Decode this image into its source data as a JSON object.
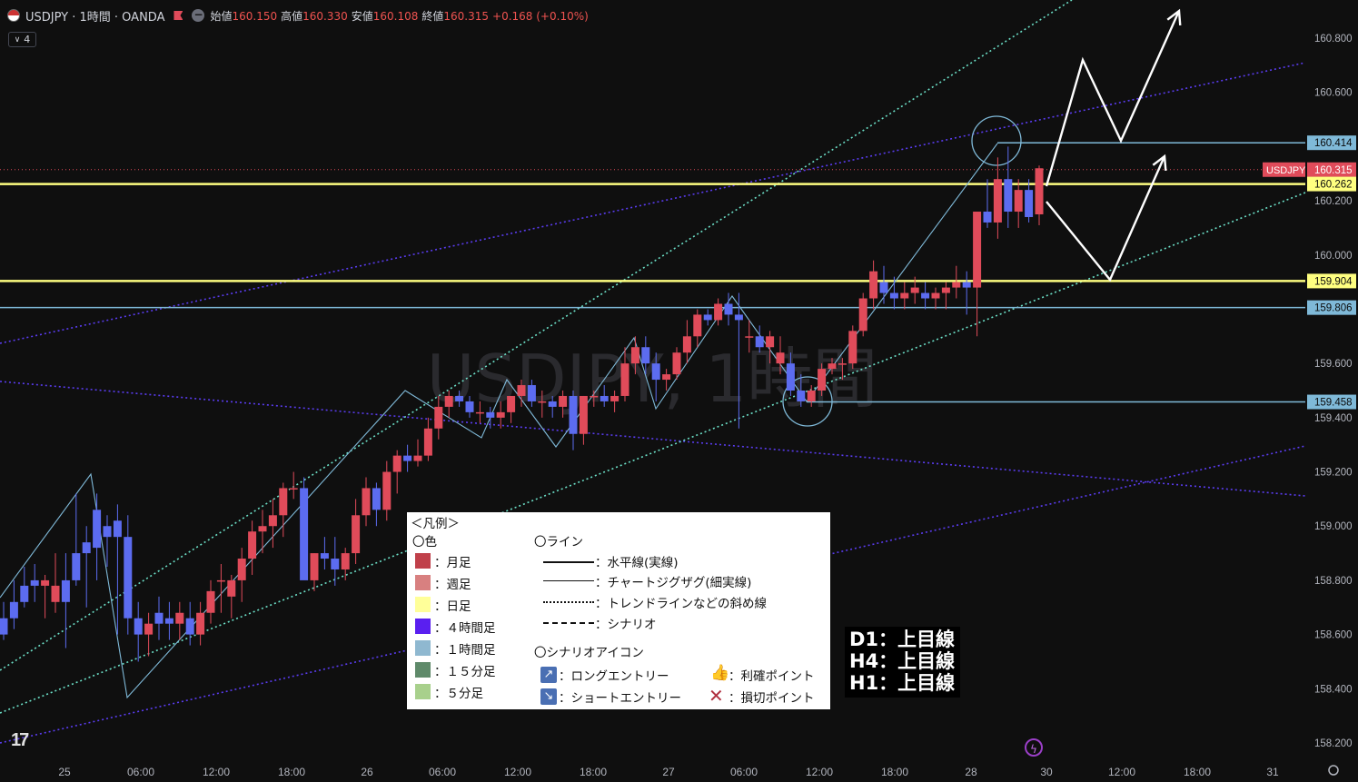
{
  "header": {
    "symbol_title": "USDJPY · 1時間 · OANDA",
    "ohlc": [
      {
        "k": "始値",
        "v": "160.150"
      },
      {
        "k": "高値",
        "v": "160.330"
      },
      {
        "k": "安値",
        "v": "160.108"
      },
      {
        "k": "終値",
        "v": "160.315"
      },
      {
        "k": "",
        "v": "+0.168 (+0.10%)"
      }
    ],
    "indicator_count": "4"
  },
  "colors": {
    "background": "#0f0f0f",
    "up": "#e04b5a",
    "down": "#5c6cf0",
    "daily_line": "#ffff80",
    "hourly_line": "#7fb9d8",
    "h4_line": "#5a3cf0",
    "trend_dotted": "#6ce0c8",
    "scenario": "#ffffff"
  },
  "watermark": "USDJPY, 1時間",
  "price_axis": {
    "ticks": [
      "160.800",
      "160.600",
      "160.200",
      "160.000",
      "159.600",
      "159.400",
      "159.200",
      "159.000",
      "158.800",
      "158.600",
      "158.400",
      "158.200"
    ],
    "labels": [
      {
        "text": "160.414",
        "value": 160.414,
        "color": "#7fb9d8",
        "text_color": "#0b0b0b"
      },
      {
        "text": "160.315",
        "value": 160.315,
        "color": "#e04b5a",
        "text_color": "#ffffff",
        "symbol": "USDJPY"
      },
      {
        "text": "160.262",
        "value": 160.262,
        "color": "#ffff80",
        "text_color": "#0b0b0b"
      },
      {
        "text": "159.904",
        "value": 159.904,
        "color": "#ffff80",
        "text_color": "#0b0b0b"
      },
      {
        "text": "159.806",
        "value": 159.806,
        "color": "#7fb9d8",
        "text_color": "#0b0b0b"
      },
      {
        "text": "159.458",
        "value": 159.458,
        "color": "#7fb9d8",
        "text_color": "#0b0b0b"
      }
    ]
  },
  "time_axis": {
    "ticks": [
      "25",
      "06:00",
      "12:00",
      "18:00",
      "26",
      "06:00",
      "12:00",
      "18:00",
      "27",
      "06:00",
      "12:00",
      "18:00",
      "28",
      "30",
      "12:00",
      "18:00",
      "31"
    ]
  },
  "chart_data": {
    "type": "candlestick",
    "symbol": "USDJPY",
    "timeframe": "1時間",
    "ylim": [
      158.2,
      160.9
    ],
    "x_labels": [
      "25",
      "06:00",
      "12:00",
      "18:00",
      "26",
      "06:00",
      "12:00",
      "18:00",
      "27",
      "06:00",
      "12:00",
      "18:00",
      "28",
      "30",
      "12:00",
      "18:00",
      "31"
    ],
    "candles": [
      [
        158.66,
        158.72,
        158.58,
        158.6
      ],
      [
        158.72,
        158.8,
        158.62,
        158.66
      ],
      [
        158.78,
        158.85,
        158.7,
        158.72
      ],
      [
        158.8,
        158.86,
        158.72,
        158.78
      ],
      [
        158.78,
        158.82,
        158.66,
        158.8
      ],
      [
        158.72,
        158.9,
        158.68,
        158.78
      ],
      [
        158.8,
        158.9,
        158.55,
        158.72
      ],
      [
        158.9,
        159.12,
        158.78,
        158.8
      ],
      [
        158.94,
        159.0,
        158.7,
        158.9
      ],
      [
        159.06,
        159.12,
        158.8,
        158.92
      ],
      [
        159.0,
        159.04,
        158.85,
        158.96
      ],
      [
        159.02,
        159.08,
        158.6,
        158.96
      ],
      [
        158.96,
        159.04,
        158.6,
        158.66
      ],
      [
        158.66,
        158.72,
        158.5,
        158.6
      ],
      [
        158.6,
        158.68,
        158.52,
        158.64
      ],
      [
        158.68,
        158.74,
        158.58,
        158.64
      ],
      [
        158.66,
        158.72,
        158.58,
        158.64
      ],
      [
        158.64,
        158.72,
        158.58,
        158.68
      ],
      [
        158.66,
        158.72,
        158.56,
        158.6
      ],
      [
        158.6,
        158.72,
        158.56,
        158.68
      ],
      [
        158.68,
        158.8,
        158.64,
        158.76
      ],
      [
        158.8,
        158.86,
        158.68,
        158.8
      ],
      [
        158.74,
        158.82,
        158.66,
        158.8
      ],
      [
        158.8,
        158.92,
        158.72,
        158.88
      ],
      [
        158.88,
        159.02,
        158.82,
        158.98
      ],
      [
        158.98,
        159.06,
        158.9,
        159.0
      ],
      [
        159.0,
        159.1,
        158.92,
        159.04
      ],
      [
        159.04,
        159.16,
        158.96,
        159.14
      ],
      [
        159.14,
        159.2,
        159.1,
        159.14
      ],
      [
        159.14,
        159.18,
        158.82,
        158.8
      ],
      [
        158.8,
        158.9,
        158.76,
        158.9
      ],
      [
        158.9,
        158.96,
        158.84,
        158.88
      ],
      [
        158.88,
        158.96,
        158.78,
        158.84
      ],
      [
        158.84,
        158.92,
        158.8,
        158.9
      ],
      [
        158.9,
        159.1,
        158.86,
        159.04
      ],
      [
        159.04,
        159.18,
        159.0,
        159.14
      ],
      [
        159.14,
        159.16,
        159.0,
        159.06
      ],
      [
        159.06,
        159.24,
        159.02,
        159.2
      ],
      [
        159.2,
        159.28,
        159.12,
        159.26
      ],
      [
        159.26,
        159.3,
        159.2,
        159.24
      ],
      [
        159.24,
        159.32,
        159.22,
        159.26
      ],
      [
        159.26,
        159.4,
        159.24,
        159.36
      ],
      [
        159.36,
        159.48,
        159.32,
        159.44
      ],
      [
        159.44,
        159.5,
        159.4,
        159.48
      ],
      [
        159.48,
        159.5,
        159.44,
        159.46
      ],
      [
        159.46,
        159.48,
        159.4,
        159.42
      ],
      [
        159.42,
        159.46,
        159.38,
        159.42
      ],
      [
        159.42,
        159.44,
        159.36,
        159.4
      ],
      [
        159.4,
        159.46,
        159.36,
        159.42
      ],
      [
        159.42,
        159.48,
        159.38,
        159.48
      ],
      [
        159.48,
        159.54,
        159.44,
        159.52
      ],
      [
        159.52,
        159.54,
        159.44,
        159.46
      ],
      [
        159.46,
        159.5,
        159.4,
        159.46
      ],
      [
        159.46,
        159.48,
        159.4,
        159.44
      ],
      [
        159.44,
        159.5,
        159.4,
        159.48
      ],
      [
        159.48,
        159.5,
        159.28,
        159.34
      ],
      [
        159.34,
        159.48,
        159.3,
        159.48
      ],
      [
        159.48,
        159.5,
        159.44,
        159.48
      ],
      [
        159.48,
        159.52,
        159.44,
        159.46
      ],
      [
        159.46,
        159.5,
        159.42,
        159.48
      ],
      [
        159.48,
        159.66,
        159.46,
        159.6
      ],
      [
        159.6,
        159.7,
        159.56,
        159.66
      ],
      [
        159.66,
        159.7,
        159.56,
        159.6
      ],
      [
        159.6,
        159.64,
        159.46,
        159.54
      ],
      [
        159.54,
        159.58,
        159.5,
        159.56
      ],
      [
        159.56,
        159.66,
        159.54,
        159.64
      ],
      [
        159.64,
        159.76,
        159.6,
        159.7
      ],
      [
        159.7,
        159.8,
        159.66,
        159.78
      ],
      [
        159.78,
        159.8,
        159.74,
        159.76
      ],
      [
        159.76,
        159.84,
        159.74,
        159.82
      ],
      [
        159.82,
        159.86,
        159.74,
        159.78
      ],
      [
        159.78,
        159.86,
        159.36,
        159.76
      ],
      [
        159.7,
        159.76,
        159.64,
        159.7
      ],
      [
        159.7,
        159.74,
        159.64,
        159.66
      ],
      [
        159.66,
        159.72,
        159.6,
        159.7
      ],
      [
        159.6,
        159.7,
        159.56,
        159.64
      ],
      [
        159.6,
        159.64,
        159.48,
        159.5
      ],
      [
        159.5,
        159.56,
        159.44,
        159.46
      ],
      [
        159.46,
        159.52,
        159.44,
        159.5
      ],
      [
        159.5,
        159.6,
        159.48,
        159.58
      ],
      [
        159.58,
        159.62,
        159.56,
        159.6
      ],
      [
        159.6,
        159.62,
        159.54,
        159.6
      ],
      [
        159.6,
        159.74,
        159.58,
        159.72
      ],
      [
        159.72,
        159.86,
        159.7,
        159.84
      ],
      [
        159.84,
        159.98,
        159.8,
        159.94
      ],
      [
        159.9,
        159.96,
        159.82,
        159.86
      ],
      [
        159.86,
        159.92,
        159.8,
        159.84
      ],
      [
        159.84,
        159.9,
        159.8,
        159.86
      ],
      [
        159.86,
        159.92,
        159.82,
        159.88
      ],
      [
        159.86,
        159.9,
        159.8,
        159.84
      ],
      [
        159.84,
        159.88,
        159.8,
        159.86
      ],
      [
        159.86,
        159.9,
        159.8,
        159.88
      ],
      [
        159.88,
        159.96,
        159.84,
        159.9
      ],
      [
        159.9,
        159.94,
        159.78,
        159.88
      ],
      [
        159.88,
        160.16,
        159.7,
        160.16
      ],
      [
        160.16,
        160.28,
        160.1,
        160.12
      ],
      [
        160.12,
        160.36,
        160.06,
        160.28
      ],
      [
        160.28,
        160.4,
        160.1,
        160.16
      ],
      [
        160.16,
        160.28,
        160.1,
        160.24
      ],
      [
        160.24,
        160.28,
        160.12,
        160.14
      ],
      [
        160.15,
        160.33,
        160.11,
        160.32
      ]
    ]
  },
  "legend": {
    "title": "＜凡例＞",
    "color_heading": "〇色",
    "colors": [
      {
        "label": "：月足",
        "color": "#c0404a"
      },
      {
        "label": "：週足",
        "color": "#d88080"
      },
      {
        "label": "：日足",
        "color": "#ffff99"
      },
      {
        "label": "：４時間足",
        "color": "#5a1ff0"
      },
      {
        "label": "：１時間足",
        "color": "#8fb8d0"
      },
      {
        "label": "：１５分足",
        "color": "#5f8a6a"
      },
      {
        "label": "：５分足",
        "color": "#a8d08c"
      }
    ],
    "line_heading": "〇ライン",
    "lines": [
      {
        "label": "：水平線(実線)"
      },
      {
        "label": "：チャートジグザグ(細実線)"
      },
      {
        "label": "：トレンドラインなどの斜め線"
      },
      {
        "label": "：シナリオ"
      }
    ],
    "icon_heading": "〇シナリオアイコン",
    "icons": [
      {
        "label": "：ロングエントリー",
        "icon": "long-entry-icon"
      },
      {
        "label": "：ショートエントリー",
        "icon": "short-entry-icon"
      },
      {
        "label": "：利確ポイント",
        "icon": "thumbs-up-icon"
      },
      {
        "label": "：損切ポイント",
        "icon": "cross-icon"
      }
    ]
  },
  "direction_box": [
    "D1：上目線",
    "H4：上目線",
    "H1：上目線"
  ],
  "logo_text": "17"
}
